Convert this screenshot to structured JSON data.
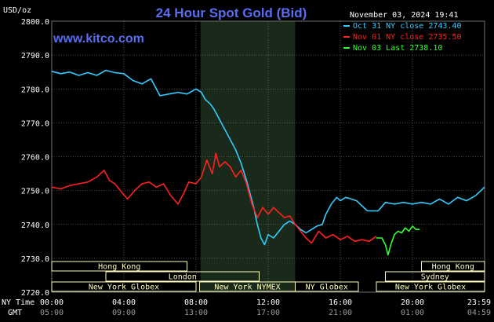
{
  "header": {
    "title": "24 Hour Spot Gold (Bid)",
    "date_time": "November 03, 2024 19:41",
    "unit_label": "USD/oz",
    "website": "www.kitco.com"
  },
  "colors": {
    "background": "#000000",
    "plot_background": "#000000",
    "shaded_band": "#1a2a1a",
    "grid": "#888888",
    "title": "#5a6cf0",
    "website": "#5a6cf0",
    "axis_text": "#ffffff",
    "session_box_fill": "#ffffc0",
    "session_box_text": "#000000"
  },
  "time_labels": {
    "ny_row_label": "NY Time",
    "gmt_row_label": "GMT",
    "ny_ticks": [
      "00:00",
      "04:00",
      "08:00",
      "12:00",
      "16:00",
      "20:00",
      "23:59"
    ],
    "gmt_ticks": [
      "05:00",
      "09:00",
      "13:00",
      "17:00",
      "21:00",
      "01:00",
      "04:59"
    ]
  },
  "sessions": [
    {
      "label": "Hong Kong",
      "row": 0,
      "start": 0,
      "end": 7.5
    },
    {
      "label": "Hong Kong",
      "row": 0,
      "start": 20.5,
      "end": 24
    },
    {
      "label": "Sydney",
      "row": 1,
      "start": 18.5,
      "end": 24
    },
    {
      "label": "London",
      "row": 1,
      "start": 3,
      "end": 11.5
    },
    {
      "label": "New York Globex",
      "row": 2,
      "start": 0,
      "end": 8
    },
    {
      "label": "New York NYMEX",
      "row": 2,
      "start": 8.2,
      "end": 13.5
    },
    {
      "label": "NY Globex",
      "row": 2,
      "start": 13.5,
      "end": 17
    },
    {
      "label": "New York Globex",
      "row": 2,
      "start": 18,
      "end": 24
    }
  ],
  "chart_data": {
    "type": "line",
    "title": "24 Hour Spot Gold (Bid)",
    "xlabel": "",
    "ylabel": "USD/oz",
    "xlim": [
      0,
      24
    ],
    "ylim": [
      2720,
      2800
    ],
    "y_ticks": [
      "2800.0",
      "2790.0",
      "2780.0",
      "2770.0",
      "2760.0",
      "2750.0",
      "2740.0",
      "2730.0",
      "2720.0"
    ],
    "shaded_region": [
      8.25,
      13.5
    ],
    "grid": true,
    "legend_position": "top-right",
    "series": [
      {
        "name": "Oct 31 NY close 2743.40",
        "color": "#33ccff",
        "points": [
          [
            0.0,
            2785.2
          ],
          [
            0.5,
            2784.5
          ],
          [
            1.0,
            2785.0
          ],
          [
            1.5,
            2784.0
          ],
          [
            2.0,
            2784.8
          ],
          [
            2.5,
            2784.0
          ],
          [
            3.0,
            2785.5
          ],
          [
            3.5,
            2784.8
          ],
          [
            4.0,
            2784.5
          ],
          [
            4.5,
            2782.5
          ],
          [
            5.0,
            2781.5
          ],
          [
            5.5,
            2783.0
          ],
          [
            6.0,
            2778.0
          ],
          [
            6.5,
            2778.5
          ],
          [
            7.0,
            2779.0
          ],
          [
            7.5,
            2778.5
          ],
          [
            8.0,
            2780.0
          ],
          [
            8.3,
            2779.0
          ],
          [
            8.5,
            2777.0
          ],
          [
            8.8,
            2775.5
          ],
          [
            9.0,
            2774.0
          ],
          [
            9.3,
            2771.0
          ],
          [
            9.6,
            2768.0
          ],
          [
            9.9,
            2765.0
          ],
          [
            10.2,
            2762.0
          ],
          [
            10.5,
            2758.0
          ],
          [
            10.8,
            2753.0
          ],
          [
            11.0,
            2749.0
          ],
          [
            11.2,
            2745.0
          ],
          [
            11.4,
            2740.0
          ],
          [
            11.6,
            2736.0
          ],
          [
            11.8,
            2734.0
          ],
          [
            12.0,
            2737.0
          ],
          [
            12.3,
            2736.0
          ],
          [
            12.6,
            2738.0
          ],
          [
            12.9,
            2740.0
          ],
          [
            13.2,
            2741.0
          ],
          [
            13.5,
            2740.0
          ],
          [
            13.8,
            2738.5
          ],
          [
            14.1,
            2737.5
          ],
          [
            14.4,
            2738.5
          ],
          [
            14.7,
            2739.5
          ],
          [
            15.0,
            2740.0
          ],
          [
            15.2,
            2743.0
          ],
          [
            15.5,
            2746.0
          ],
          [
            15.8,
            2748.0
          ],
          [
            16.0,
            2747.0
          ],
          [
            16.3,
            2748.0
          ],
          [
            16.6,
            2747.5
          ],
          [
            16.9,
            2747.0
          ],
          [
            17.2,
            2745.5
          ],
          [
            17.5,
            2744.0
          ],
          [
            17.8,
            2744.0
          ],
          [
            18.1,
            2744.0
          ],
          [
            18.5,
            2746.5
          ],
          [
            19.0,
            2746.0
          ],
          [
            19.5,
            2746.5
          ],
          [
            20.0,
            2746.0
          ],
          [
            20.5,
            2746.5
          ],
          [
            21.0,
            2746.0
          ],
          [
            21.5,
            2747.5
          ],
          [
            22.0,
            2746.0
          ],
          [
            22.5,
            2748.0
          ],
          [
            23.0,
            2747.0
          ],
          [
            23.5,
            2748.5
          ],
          [
            23.99,
            2751.0
          ]
        ]
      },
      {
        "name": "Nov 01 NY close 2735.50",
        "color": "#ff2020",
        "points": [
          [
            0.0,
            2751.0
          ],
          [
            0.5,
            2750.5
          ],
          [
            1.0,
            2751.5
          ],
          [
            1.5,
            2752.0
          ],
          [
            2.0,
            2752.5
          ],
          [
            2.5,
            2754.0
          ],
          [
            2.9,
            2756.0
          ],
          [
            3.2,
            2753.0
          ],
          [
            3.5,
            2752.0
          ],
          [
            3.8,
            2750.0
          ],
          [
            4.2,
            2747.5
          ],
          [
            4.6,
            2750.0
          ],
          [
            5.0,
            2752.0
          ],
          [
            5.4,
            2752.5
          ],
          [
            5.8,
            2751.0
          ],
          [
            6.2,
            2752.0
          ],
          [
            6.6,
            2748.5
          ],
          [
            7.0,
            2746.0
          ],
          [
            7.3,
            2749.0
          ],
          [
            7.6,
            2752.5
          ],
          [
            8.0,
            2752.0
          ],
          [
            8.3,
            2754.0
          ],
          [
            8.6,
            2759.0
          ],
          [
            8.9,
            2755.0
          ],
          [
            9.1,
            2761.0
          ],
          [
            9.3,
            2757.0
          ],
          [
            9.6,
            2758.5
          ],
          [
            9.9,
            2757.0
          ],
          [
            10.2,
            2754.0
          ],
          [
            10.5,
            2756.0
          ],
          [
            10.8,
            2752.0
          ],
          [
            11.1,
            2746.0
          ],
          [
            11.4,
            2742.0
          ],
          [
            11.7,
            2745.0
          ],
          [
            12.0,
            2743.0
          ],
          [
            12.3,
            2745.0
          ],
          [
            12.6,
            2743.5
          ],
          [
            12.9,
            2742.0
          ],
          [
            13.2,
            2742.5
          ],
          [
            13.5,
            2740.0
          ],
          [
            13.8,
            2738.0
          ],
          [
            14.1,
            2736.0
          ],
          [
            14.4,
            2734.5
          ],
          [
            14.8,
            2738.0
          ],
          [
            15.2,
            2736.0
          ],
          [
            15.6,
            2737.0
          ],
          [
            16.0,
            2735.5
          ],
          [
            16.4,
            2736.5
          ],
          [
            16.8,
            2735.0
          ],
          [
            17.2,
            2735.5
          ],
          [
            17.6,
            2735.0
          ],
          [
            18.0,
            2736.5
          ]
        ]
      },
      {
        "name": "Nov 03 Last 2738.10",
        "color": "#33ff33",
        "points": [
          [
            18.0,
            2736.0
          ],
          [
            18.3,
            2736.0
          ],
          [
            18.5,
            2734.0
          ],
          [
            18.65,
            2731.0
          ],
          [
            18.8,
            2734.0
          ],
          [
            19.0,
            2737.0
          ],
          [
            19.2,
            2738.0
          ],
          [
            19.4,
            2737.5
          ],
          [
            19.6,
            2739.0
          ],
          [
            19.8,
            2738.0
          ],
          [
            20.0,
            2739.5
          ],
          [
            20.2,
            2738.5
          ],
          [
            20.4,
            2738.5
          ]
        ]
      }
    ]
  }
}
